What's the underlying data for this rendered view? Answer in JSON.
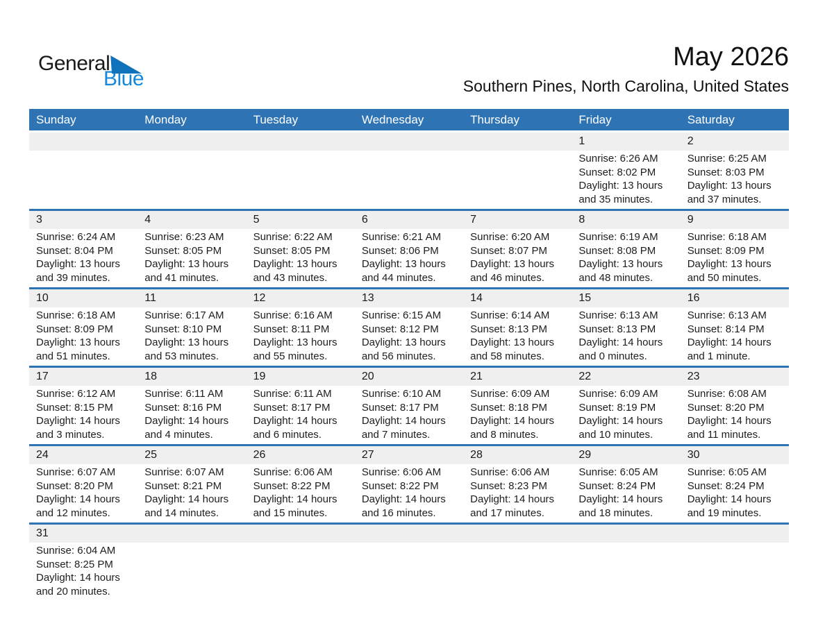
{
  "logo": {
    "general": "General",
    "blue": "Blue"
  },
  "header": {
    "title": "May 2026",
    "subtitle": "Southern Pines, North Carolina, United States"
  },
  "weekdays": [
    "Sunday",
    "Monday",
    "Tuesday",
    "Wednesday",
    "Thursday",
    "Friday",
    "Saturday"
  ],
  "colors": {
    "header_blue": "#2E74B5",
    "divider_blue": "#2E74B5",
    "strip_gray": "#EFEFEF",
    "logo_blue": "#1787D9",
    "logo_triangle_blue": "#1072BB"
  },
  "weeks": [
    [
      null,
      null,
      null,
      null,
      null,
      {
        "day": "1",
        "sunrise": "Sunrise: 6:26 AM",
        "sunset": "Sunset: 8:02 PM",
        "daylight": "Daylight: 13 hours and 35 minutes."
      },
      {
        "day": "2",
        "sunrise": "Sunrise: 6:25 AM",
        "sunset": "Sunset: 8:03 PM",
        "daylight": "Daylight: 13 hours and 37 minutes."
      }
    ],
    [
      {
        "day": "3",
        "sunrise": "Sunrise: 6:24 AM",
        "sunset": "Sunset: 8:04 PM",
        "daylight": "Daylight: 13 hours and 39 minutes."
      },
      {
        "day": "4",
        "sunrise": "Sunrise: 6:23 AM",
        "sunset": "Sunset: 8:05 PM",
        "daylight": "Daylight: 13 hours and 41 minutes."
      },
      {
        "day": "5",
        "sunrise": "Sunrise: 6:22 AM",
        "sunset": "Sunset: 8:05 PM",
        "daylight": "Daylight: 13 hours and 43 minutes."
      },
      {
        "day": "6",
        "sunrise": "Sunrise: 6:21 AM",
        "sunset": "Sunset: 8:06 PM",
        "daylight": "Daylight: 13 hours and 44 minutes."
      },
      {
        "day": "7",
        "sunrise": "Sunrise: 6:20 AM",
        "sunset": "Sunset: 8:07 PM",
        "daylight": "Daylight: 13 hours and 46 minutes."
      },
      {
        "day": "8",
        "sunrise": "Sunrise: 6:19 AM",
        "sunset": "Sunset: 8:08 PM",
        "daylight": "Daylight: 13 hours and 48 minutes."
      },
      {
        "day": "9",
        "sunrise": "Sunrise: 6:18 AM",
        "sunset": "Sunset: 8:09 PM",
        "daylight": "Daylight: 13 hours and 50 minutes."
      }
    ],
    [
      {
        "day": "10",
        "sunrise": "Sunrise: 6:18 AM",
        "sunset": "Sunset: 8:09 PM",
        "daylight": "Daylight: 13 hours and 51 minutes."
      },
      {
        "day": "11",
        "sunrise": "Sunrise: 6:17 AM",
        "sunset": "Sunset: 8:10 PM",
        "daylight": "Daylight: 13 hours and 53 minutes."
      },
      {
        "day": "12",
        "sunrise": "Sunrise: 6:16 AM",
        "sunset": "Sunset: 8:11 PM",
        "daylight": "Daylight: 13 hours and 55 minutes."
      },
      {
        "day": "13",
        "sunrise": "Sunrise: 6:15 AM",
        "sunset": "Sunset: 8:12 PM",
        "daylight": "Daylight: 13 hours and 56 minutes."
      },
      {
        "day": "14",
        "sunrise": "Sunrise: 6:14 AM",
        "sunset": "Sunset: 8:13 PM",
        "daylight": "Daylight: 13 hours and 58 minutes."
      },
      {
        "day": "15",
        "sunrise": "Sunrise: 6:13 AM",
        "sunset": "Sunset: 8:13 PM",
        "daylight": "Daylight: 14 hours and 0 minutes."
      },
      {
        "day": "16",
        "sunrise": "Sunrise: 6:13 AM",
        "sunset": "Sunset: 8:14 PM",
        "daylight": "Daylight: 14 hours and 1 minute."
      }
    ],
    [
      {
        "day": "17",
        "sunrise": "Sunrise: 6:12 AM",
        "sunset": "Sunset: 8:15 PM",
        "daylight": "Daylight: 14 hours and 3 minutes."
      },
      {
        "day": "18",
        "sunrise": "Sunrise: 6:11 AM",
        "sunset": "Sunset: 8:16 PM",
        "daylight": "Daylight: 14 hours and 4 minutes."
      },
      {
        "day": "19",
        "sunrise": "Sunrise: 6:11 AM",
        "sunset": "Sunset: 8:17 PM",
        "daylight": "Daylight: 14 hours and 6 minutes."
      },
      {
        "day": "20",
        "sunrise": "Sunrise: 6:10 AM",
        "sunset": "Sunset: 8:17 PM",
        "daylight": "Daylight: 14 hours and 7 minutes."
      },
      {
        "day": "21",
        "sunrise": "Sunrise: 6:09 AM",
        "sunset": "Sunset: 8:18 PM",
        "daylight": "Daylight: 14 hours and 8 minutes."
      },
      {
        "day": "22",
        "sunrise": "Sunrise: 6:09 AM",
        "sunset": "Sunset: 8:19 PM",
        "daylight": "Daylight: 14 hours and 10 minutes."
      },
      {
        "day": "23",
        "sunrise": "Sunrise: 6:08 AM",
        "sunset": "Sunset: 8:20 PM",
        "daylight": "Daylight: 14 hours and 11 minutes."
      }
    ],
    [
      {
        "day": "24",
        "sunrise": "Sunrise: 6:07 AM",
        "sunset": "Sunset: 8:20 PM",
        "daylight": "Daylight: 14 hours and 12 minutes."
      },
      {
        "day": "25",
        "sunrise": "Sunrise: 6:07 AM",
        "sunset": "Sunset: 8:21 PM",
        "daylight": "Daylight: 14 hours and 14 minutes."
      },
      {
        "day": "26",
        "sunrise": "Sunrise: 6:06 AM",
        "sunset": "Sunset: 8:22 PM",
        "daylight": "Daylight: 14 hours and 15 minutes."
      },
      {
        "day": "27",
        "sunrise": "Sunrise: 6:06 AM",
        "sunset": "Sunset: 8:22 PM",
        "daylight": "Daylight: 14 hours and 16 minutes."
      },
      {
        "day": "28",
        "sunrise": "Sunrise: 6:06 AM",
        "sunset": "Sunset: 8:23 PM",
        "daylight": "Daylight: 14 hours and 17 minutes."
      },
      {
        "day": "29",
        "sunrise": "Sunrise: 6:05 AM",
        "sunset": "Sunset: 8:24 PM",
        "daylight": "Daylight: 14 hours and 18 minutes."
      },
      {
        "day": "30",
        "sunrise": "Sunrise: 6:05 AM",
        "sunset": "Sunset: 8:24 PM",
        "daylight": "Daylight: 14 hours and 19 minutes."
      }
    ],
    [
      {
        "day": "31",
        "sunrise": "Sunrise: 6:04 AM",
        "sunset": "Sunset: 8:25 PM",
        "daylight": "Daylight: 14 hours and 20 minutes."
      },
      null,
      null,
      null,
      null,
      null,
      null
    ]
  ]
}
